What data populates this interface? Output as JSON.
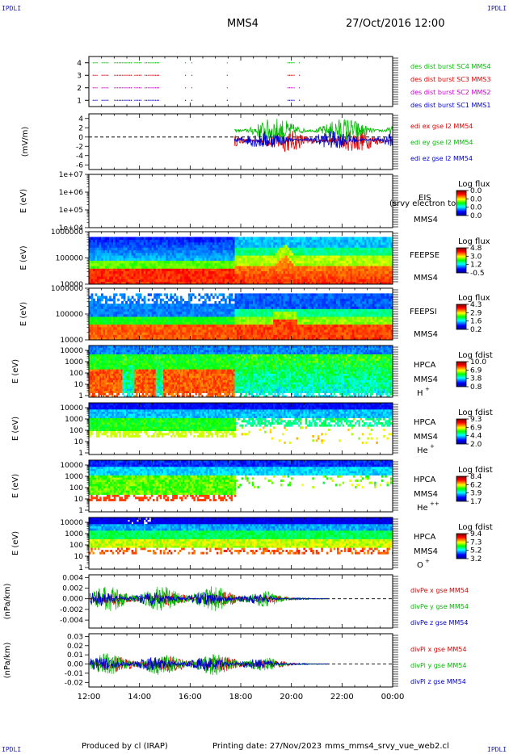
{
  "header": {
    "corner_tl": "IPDLI",
    "corner_tr": "IPDLI",
    "corner_bl": "IPDLI",
    "corner_br": "IPDLI",
    "title": "MMS4",
    "datetime": "27/Oct/2016 12:00"
  },
  "footer": {
    "produced_by": "Produced by cl (IRAP)",
    "printing_date": "Printing date: 27/Nov/2023",
    "script_name": "mms_mms4_srvy_vue_web2.cl"
  },
  "time_axis": {
    "ticks": [
      "12:00",
      "14:00",
      "16:00",
      "18:00",
      "20:00",
      "22:00",
      "00:00"
    ],
    "range_hours": [
      12,
      24
    ]
  },
  "chart_data": [
    {
      "type": "line",
      "panel": "burst",
      "ylim": [
        0.5,
        4.5
      ],
      "yticks": [
        "1",
        "2",
        "3",
        "4"
      ],
      "ylabel": "",
      "series": [
        {
          "name": "des dist burst SC1 MMS1",
          "color": "#0000cc",
          "level": 1
        },
        {
          "name": "des dist burst SC2 MMS2",
          "color": "#cc00cc",
          "level": 2
        },
        {
          "name": "des dist burst SC3 MMS3",
          "color": "#dd0000",
          "level": 3
        },
        {
          "name": "des dist burst SC4 MMS4",
          "color": "#00bb00",
          "level": 4
        }
      ],
      "intervals": [
        [
          12.15,
          12.35
        ],
        [
          12.5,
          12.8
        ],
        [
          13.0,
          13.7
        ],
        [
          13.8,
          14.1
        ],
        [
          14.2,
          14.8
        ],
        [
          15.8,
          15.85
        ],
        [
          16.05,
          16.1
        ],
        [
          17.45,
          17.5
        ],
        [
          19.85,
          20.15
        ],
        [
          20.3,
          20.35
        ]
      ]
    },
    {
      "type": "line",
      "panel": "edi",
      "ylim": [
        -7,
        5
      ],
      "yticks": [
        "4",
        "2",
        "0",
        "-2",
        "-4",
        "-6"
      ],
      "ylabel": "(mV/m)",
      "data_start_hour": 17.75,
      "series": [
        {
          "name": "edi ex gse l2 MM54",
          "color": "#dd0000",
          "center": -0.8,
          "amp": 2.2
        },
        {
          "name": "edi ey gse l2 MM54",
          "color": "#00bb00",
          "center": 1.4,
          "amp": 2.5
        },
        {
          "name": "edi ez gse l2 MM54",
          "color": "#0000cc",
          "center": -0.6,
          "amp": 1.8
        }
      ]
    },
    {
      "type": "heatmap",
      "panel": "eis",
      "ylabel": "E (eV)",
      "yticks": [
        "1e+07",
        "1e+06",
        "1e+05",
        "1e+04"
      ],
      "labels": [
        "EIS",
        "MMS4"
      ],
      "note": "(srvy electron to",
      "cbar_title": "Log flux",
      "cbar_ticks": [
        "0.0",
        "0.0",
        "0.0",
        "0.0"
      ],
      "empty": true
    },
    {
      "type": "heatmap",
      "panel": "feepse",
      "ylabel": "E (eV)",
      "yticks": [
        "1000000",
        "100000",
        "10000"
      ],
      "labels": [
        "FEEPSE",
        "MMS4"
      ],
      "cbar_title": "Log flux",
      "cbar_ticks": [
        "4.8",
        "3.0",
        "1.2",
        "-0.5"
      ]
    },
    {
      "type": "heatmap",
      "panel": "feepsi",
      "ylabel": "E (eV)",
      "yticks": [
        "1000000",
        "100000",
        "10000"
      ],
      "labels": [
        "FEEPSI",
        "MMS4"
      ],
      "cbar_title": "Log flux",
      "cbar_ticks": [
        "4.3",
        "2.9",
        "1.6",
        "0.2"
      ]
    },
    {
      "type": "heatmap",
      "panel": "hpca_h",
      "ylabel": "E (eV)",
      "yticks": [
        "10000",
        "1000",
        "100",
        "10",
        "1"
      ],
      "labels": [
        "HPCA",
        "MMS4",
        "H",
        "+"
      ],
      "cbar_title": "Log fdist",
      "cbar_ticks": [
        "10.0",
        "6.9",
        "3.8",
        "0.8"
      ]
    },
    {
      "type": "heatmap",
      "panel": "hpca_he",
      "ylabel": "E (eV)",
      "yticks": [
        "10000",
        "1000",
        "100",
        "10",
        "1"
      ],
      "labels": [
        "HPCA",
        "MMS4",
        "He",
        "+"
      ],
      "cbar_title": "Log fdist",
      "cbar_ticks": [
        "9.3",
        "6.9",
        "4.4",
        "2.0"
      ]
    },
    {
      "type": "heatmap",
      "panel": "hpca_hepp",
      "ylabel": "E (eV)",
      "yticks": [
        "10000",
        "1000",
        "100",
        "10",
        "1"
      ],
      "labels": [
        "HPCA",
        "MMS4",
        "He",
        "++"
      ],
      "cbar_title": "Log fdist",
      "cbar_ticks": [
        "8.4",
        "6.2",
        "3.9",
        "1.7"
      ]
    },
    {
      "type": "heatmap",
      "panel": "hpca_o",
      "ylabel": "E (eV)",
      "yticks": [
        "10000",
        "1000",
        "100",
        "10",
        "1"
      ],
      "labels": [
        "HPCA",
        "MMS4",
        "O",
        "+"
      ],
      "cbar_title": "Log fdist",
      "cbar_ticks": [
        "9.4",
        "7.3",
        "5.2",
        "3.2"
      ]
    },
    {
      "type": "line",
      "panel": "divpe",
      "ylim": [
        -0.0055,
        0.0045
      ],
      "ylabel": "(nPa/km)",
      "yticks": [
        "0.004",
        "0.002",
        "0.000",
        "-0.002",
        "-0.004"
      ],
      "data_end_hour": 21.5,
      "series": [
        {
          "name": "divPe x gse MM54",
          "color": "#dd0000",
          "amp": 0.0012
        },
        {
          "name": "divPe y gse MM54",
          "color": "#00bb00",
          "amp": 0.0022
        },
        {
          "name": "divPe z gse MM54",
          "color": "#0000cc",
          "amp": 0.0012
        }
      ]
    },
    {
      "type": "line",
      "panel": "divpi",
      "ylim": [
        -0.025,
        0.033
      ],
      "ylabel": "(nPa/km)",
      "yticks": [
        "0.03",
        "0.02",
        "0.01",
        "0.00",
        "-0.01",
        "-0.02"
      ],
      "data_end_hour": 21.5,
      "series": [
        {
          "name": "divPi x gse MM54",
          "color": "#dd0000",
          "amp": 0.008
        },
        {
          "name": "divPi y gse MM54",
          "color": "#00bb00",
          "amp": 0.011
        },
        {
          "name": "divPi z gse MM54",
          "color": "#0000cc",
          "amp": 0.007
        }
      ]
    }
  ]
}
